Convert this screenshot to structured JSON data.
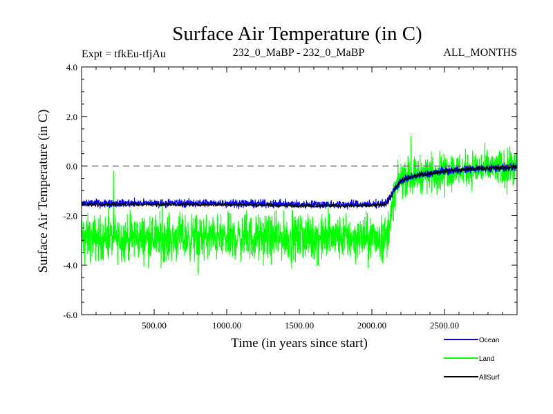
{
  "chart_data": {
    "type": "line",
    "title": "Surface Air Temperature (in C)",
    "subtitle_left": "Expt = tfkEu-tfjAu",
    "subtitle_center": "232_0_MaBP - 232_0_MaBP",
    "subtitle_right": "ALL_MONTHS",
    "xlabel": "Time (in years since start)",
    "ylabel": "Surface Air Temperature (in C)",
    "xlim": [
      0,
      3000
    ],
    "ylim": [
      -6.0,
      4.0
    ],
    "x_ticks": [
      500,
      1000,
      1500,
      2000,
      2500
    ],
    "x_tick_labels": [
      "500.00",
      "1000.00",
      "1500.00",
      "2000.00",
      "2500.00"
    ],
    "y_ticks": [
      -6,
      -4,
      -2,
      0,
      2,
      4
    ],
    "y_tick_labels": [
      "-6.0",
      "-4.0",
      "-2.0",
      "0.0",
      "2.0",
      "4.0"
    ],
    "reference_line_y": 0.0,
    "reference_line_style": "dashed",
    "legend_placement": "bottom-right, below plot",
    "series": [
      {
        "name": "Land",
        "color": "#00ff00",
        "description": "noisy annual series",
        "points": [
          [
            0,
            -2.9
          ],
          [
            250,
            -2.9
          ],
          [
            500,
            -2.9
          ],
          [
            750,
            -2.9
          ],
          [
            1000,
            -2.9
          ],
          [
            1250,
            -2.9
          ],
          [
            1500,
            -2.9
          ],
          [
            1750,
            -2.9
          ],
          [
            2000,
            -2.9
          ],
          [
            2100,
            -2.9
          ],
          [
            2140,
            -1.8
          ],
          [
            2160,
            -1.0
          ],
          [
            2200,
            -0.5
          ],
          [
            2300,
            -0.35
          ],
          [
            2500,
            -0.2
          ],
          [
            2750,
            -0.1
          ],
          [
            3000,
            -0.1
          ]
        ],
        "spread": [
          [
            0,
            1.35
          ],
          [
            2100,
            1.35
          ],
          [
            2140,
            1.1
          ],
          [
            2200,
            1.1
          ],
          [
            3000,
            1.1
          ]
        ]
      },
      {
        "name": "Ocean",
        "color": "#0000ff",
        "points": [
          [
            0,
            -1.5
          ],
          [
            500,
            -1.5
          ],
          [
            1000,
            -1.5
          ],
          [
            1500,
            -1.55
          ],
          [
            2000,
            -1.55
          ],
          [
            2100,
            -1.5
          ],
          [
            2150,
            -1.0
          ],
          [
            2200,
            -0.6
          ],
          [
            2300,
            -0.4
          ],
          [
            2400,
            -0.3
          ],
          [
            2500,
            -0.2
          ],
          [
            2750,
            -0.1
          ],
          [
            3000,
            -0.05
          ]
        ],
        "spread": [
          [
            0,
            0.25
          ],
          [
            3000,
            0.25
          ]
        ]
      },
      {
        "name": "AllSurf",
        "color": "#000000",
        "points": [
          [
            0,
            -1.55
          ],
          [
            500,
            -1.55
          ],
          [
            1000,
            -1.55
          ],
          [
            1500,
            -1.6
          ],
          [
            2000,
            -1.6
          ],
          [
            2100,
            -1.55
          ],
          [
            2150,
            -1.0
          ],
          [
            2200,
            -0.6
          ],
          [
            2300,
            -0.4
          ],
          [
            2400,
            -0.3
          ],
          [
            2500,
            -0.2
          ],
          [
            2750,
            -0.1
          ],
          [
            3000,
            -0.05
          ]
        ],
        "spread": [
          [
            0,
            0.12
          ],
          [
            3000,
            0.12
          ]
        ]
      }
    ]
  },
  "legend": [
    {
      "label": "Ocean",
      "color": "#0000ff"
    },
    {
      "label": "Land",
      "color": "#00ff00"
    },
    {
      "label": "AllSurf",
      "color": "#000000"
    }
  ]
}
